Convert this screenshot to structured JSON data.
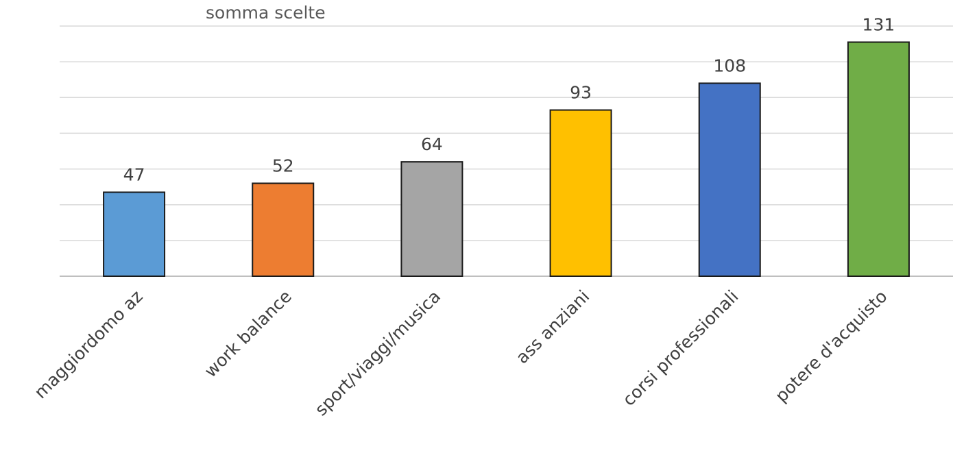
{
  "chart_data": {
    "type": "bar",
    "title": "somma scelte",
    "categories": [
      "maggiordomo az",
      "work balance",
      "sport/viaggi/musica",
      "ass anziani",
      "corsi professionali",
      "potere d'acquisto"
    ],
    "values": [
      47,
      52,
      64,
      93,
      108,
      131
    ],
    "colors": [
      "#5b9bd5",
      "#ed7d31",
      "#a5a5a5",
      "#ffc000",
      "#4472c4",
      "#70ad47"
    ],
    "ylim": [
      0,
      140
    ],
    "grid": true,
    "data_labels": true,
    "xlabel": "",
    "ylabel": ""
  }
}
